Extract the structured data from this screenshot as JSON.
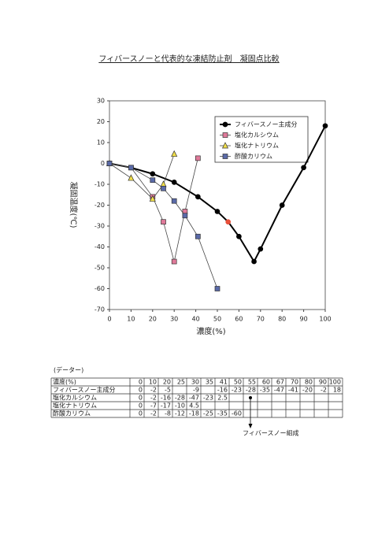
{
  "chart_data": {
    "type": "line",
    "title": "フィバースノーと代表的な凍結防止剤　凝固点比較",
    "x_label": "濃度(%)",
    "y_label": "凝固温度(℃)",
    "xlim": [
      0,
      100
    ],
    "xticks": [
      0,
      10,
      20,
      30,
      40,
      50,
      60,
      70,
      80,
      90,
      100
    ],
    "ylim": [
      -70,
      30
    ],
    "yticks": [
      -70,
      -60,
      -50,
      -40,
      -30,
      -20,
      -10,
      0,
      10,
      20,
      30
    ],
    "legend": "upper right",
    "series": [
      {
        "name": "フィバースノー主成分",
        "color": "#000000",
        "marker": "circle",
        "highlight_x": 55,
        "highlight_color": "#e8503a",
        "x": [
          0,
          10,
          20,
          30,
          41,
          50,
          55,
          60,
          67,
          70,
          80,
          90,
          100
        ],
        "values": [
          0,
          -2,
          -5,
          -9,
          -16,
          -23,
          -28,
          -35,
          -47,
          -41,
          -20,
          -2,
          18
        ]
      },
      {
        "name": "塩化カルシウム",
        "color": "#e07a9a",
        "marker": "square",
        "x": [
          0,
          10,
          20,
          25,
          30,
          35,
          41
        ],
        "values": [
          0,
          -2,
          -16,
          -28,
          -47,
          -23,
          2.5
        ]
      },
      {
        "name": "塩化ナトリウム",
        "color": "#f2e04a",
        "marker": "triangle",
        "x": [
          0,
          10,
          20,
          25,
          30
        ],
        "values": [
          0,
          -7,
          -17,
          -10,
          4.5
        ]
      },
      {
        "name": "酢酸カリウム",
        "color": "#5a6aa8",
        "marker": "square",
        "x": [
          0,
          10,
          20,
          25,
          30,
          35,
          41,
          50
        ],
        "values": [
          0,
          -2,
          -8,
          -12,
          -18,
          -25,
          -35,
          -60
        ]
      }
    ]
  },
  "table": {
    "caption": "(データー)",
    "header_label": "濃度(%)",
    "columns": [
      0,
      10,
      20,
      25,
      30,
      35,
      41,
      50,
      55,
      60,
      67,
      70,
      80,
      90,
      100
    ],
    "rows": [
      {
        "label": "フィバースノー主成分",
        "cells": [
          0,
          -2,
          -5,
          null,
          -9,
          null,
          -16,
          -23,
          -28,
          -35,
          -47,
          -41,
          -20,
          -2,
          18
        ]
      },
      {
        "label": "塩化カルシウム",
        "cells": [
          0,
          -2,
          -16,
          -28,
          -47,
          -23,
          2.5,
          null,
          null,
          null,
          null,
          null,
          null,
          null,
          null
        ]
      },
      {
        "label": "塩化ナトリウム",
        "cells": [
          0,
          -7,
          -17,
          -10,
          4.5,
          null,
          null,
          null,
          null,
          null,
          null,
          null,
          null,
          null,
          null
        ]
      },
      {
        "label": "酢酸カリウム",
        "cells": [
          0,
          -2,
          -8,
          -12,
          -18,
          -25,
          -35,
          -60,
          null,
          null,
          null,
          null,
          null,
          null,
          null
        ]
      }
    ]
  },
  "annotation": "フィバースノー組成"
}
